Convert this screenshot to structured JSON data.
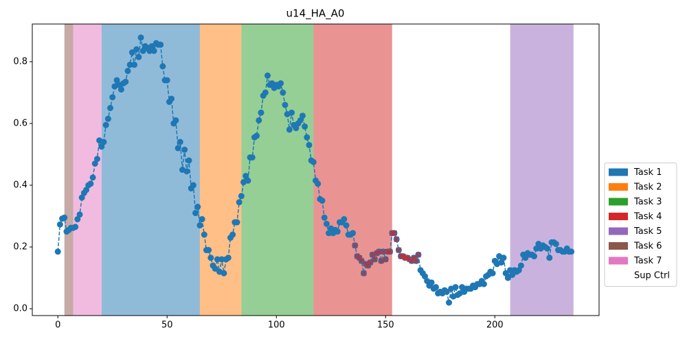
{
  "chart_data": {
    "type": "line",
    "title": "u14_HA_A0",
    "x": [
      0,
      1,
      2,
      3,
      4,
      5,
      6,
      7,
      8,
      9,
      10,
      11,
      12,
      13,
      14,
      15,
      16,
      17,
      18,
      19,
      20,
      21,
      22,
      23,
      24,
      25,
      26,
      27,
      28,
      29,
      30,
      31,
      32,
      33,
      34,
      35,
      36,
      37,
      38,
      39,
      40,
      41,
      42,
      43,
      44,
      45,
      46,
      47,
      48,
      49,
      50,
      51,
      52,
      53,
      54,
      55,
      56,
      57,
      58,
      59,
      60,
      61,
      62,
      63,
      64,
      65,
      66,
      67,
      68,
      69,
      70,
      71,
      72,
      73,
      74,
      75,
      76,
      77,
      78,
      79,
      80,
      81,
      82,
      83,
      84,
      85,
      86,
      87,
      88,
      89,
      90,
      91,
      92,
      93,
      94,
      95,
      96,
      97,
      98,
      99,
      100,
      101,
      102,
      103,
      104,
      105,
      106,
      107,
      108,
      109,
      110,
      111,
      112,
      113,
      114,
      115,
      116,
      117,
      118,
      119,
      120,
      121,
      122,
      123,
      124,
      125,
      126,
      127,
      128,
      129,
      130,
      131,
      132,
      133,
      134,
      135,
      136,
      137,
      138,
      139,
      140,
      141,
      142,
      143,
      144,
      145,
      146,
      147,
      148,
      149,
      150,
      151,
      152,
      153,
      154,
      155,
      156,
      157,
      158,
      159,
      160,
      161,
      162,
      163,
      164,
      165,
      166,
      167,
      168,
      169,
      170,
      171,
      172,
      173,
      174,
      175,
      176,
      177,
      178,
      179,
      180,
      181,
      182,
      183,
      184,
      185,
      186,
      187,
      188,
      189,
      190,
      191,
      192,
      193,
      194,
      195,
      196,
      197,
      198,
      199,
      200,
      201,
      202,
      203,
      204,
      205,
      206,
      207,
      208,
      209,
      210,
      211,
      212,
      213,
      214,
      215,
      216,
      217,
      218,
      219,
      220,
      221,
      222,
      223,
      224,
      225,
      226,
      227,
      228,
      229,
      230,
      231,
      232,
      233,
      234,
      235
    ],
    "values": [
      0.185,
      0.273,
      0.292,
      0.295,
      0.25,
      0.255,
      0.262,
      0.262,
      0.265,
      0.29,
      0.305,
      0.36,
      0.375,
      0.385,
      0.4,
      0.405,
      0.425,
      0.47,
      0.485,
      0.545,
      0.525,
      0.54,
      0.595,
      0.615,
      0.65,
      0.685,
      0.72,
      0.74,
      0.725,
      0.71,
      0.73,
      0.735,
      0.77,
      0.79,
      0.83,
      0.79,
      0.84,
      0.815,
      0.878,
      0.835,
      0.85,
      0.845,
      0.835,
      0.85,
      0.835,
      0.86,
      0.855,
      0.855,
      0.785,
      0.74,
      0.74,
      0.67,
      0.68,
      0.6,
      0.61,
      0.52,
      0.54,
      0.45,
      0.515,
      0.445,
      0.48,
      0.39,
      0.4,
      0.31,
      0.33,
      0.27,
      0.29,
      0.24,
      0.19,
      0.19,
      0.165,
      0.14,
      0.13,
      0.16,
      0.12,
      0.16,
      0.115,
      0.16,
      0.165,
      0.23,
      0.24,
      0.28,
      0.28,
      0.345,
      0.365,
      0.41,
      0.43,
      0.415,
      0.49,
      0.49,
      0.555,
      0.56,
      0.61,
      0.635,
      0.69,
      0.7,
      0.755,
      0.725,
      0.73,
      0.715,
      0.725,
      0.72,
      0.73,
      0.7,
      0.66,
      0.63,
      0.58,
      0.635,
      0.595,
      0.585,
      0.6,
      0.61,
      0.625,
      0.59,
      0.555,
      0.53,
      0.48,
      0.475,
      0.415,
      0.405,
      0.355,
      0.35,
      0.295,
      0.275,
      0.245,
      0.26,
      0.245,
      0.255,
      0.25,
      0.28,
      0.28,
      0.29,
      0.27,
      0.24,
      0.24,
      0.245,
      0.205,
      0.17,
      0.165,
      0.155,
      0.115,
      0.145,
      0.14,
      0.15,
      0.175,
      0.16,
      0.18,
      0.185,
      0.155,
      0.185,
      0.16,
      0.185,
      0.185,
      0.245,
      0.245,
      0.225,
      0.19,
      0.17,
      0.17,
      0.165,
      0.165,
      0.16,
      0.155,
      0.165,
      0.155,
      0.175,
      0.125,
      0.115,
      0.105,
      0.09,
      0.075,
      0.085,
      0.065,
      0.07,
      0.05,
      0.055,
      0.05,
      0.06,
      0.055,
      0.02,
      0.065,
      0.04,
      0.07,
      0.045,
      0.05,
      0.07,
      0.055,
      0.065,
      0.065,
      0.065,
      0.075,
      0.07,
      0.08,
      0.08,
      0.09,
      0.08,
      0.105,
      0.11,
      0.12,
      0.115,
      0.155,
      0.145,
      0.17,
      0.15,
      0.165,
      0.115,
      0.1,
      0.125,
      0.11,
      0.125,
      0.12,
      0.125,
      0.14,
      0.175,
      0.165,
      0.18,
      0.175,
      0.175,
      0.17,
      0.195,
      0.21,
      0.195,
      0.205,
      0.2,
      0.195,
      0.165,
      0.215,
      0.215,
      0.21,
      0.19,
      0.19,
      0.185,
      0.185,
      0.195,
      0.185,
      0.185
    ],
    "color": "#1f77b4",
    "line_style": "dashed",
    "cross_color": "#d62728",
    "cross_range": [
      136,
      165
    ],
    "regions": [
      {
        "name": "Task 1",
        "color": "#1f77b4",
        "start": 20,
        "end": 65
      },
      {
        "name": "Task 2",
        "color": "#ff7f0e",
        "start": 65,
        "end": 84
      },
      {
        "name": "Task 3",
        "color": "#2ca02c",
        "start": 84,
        "end": 117
      },
      {
        "name": "Task 4",
        "color": "#d62728",
        "start": 117,
        "end": 153
      },
      {
        "name": "Task 5",
        "color": "#9467bd",
        "start": 207,
        "end": 236
      },
      {
        "name": "Task 6",
        "color": "#8c564b",
        "start": 3,
        "end": 7
      },
      {
        "name": "Task 7",
        "color": "#e377c2",
        "start": 7,
        "end": 20
      },
      {
        "name": "Sup Ctrl",
        "color": "#ffffff",
        "start": 153,
        "end": 207
      }
    ],
    "xlim": [
      -11.7,
      247.7
    ],
    "ylim": [
      -0.022,
      0.922
    ],
    "xticks": [
      0,
      50,
      100,
      150,
      200
    ],
    "yticks": [
      {
        "value": 0,
        "label": "0.0"
      },
      0.2,
      0.4,
      0.6,
      0.8
    ],
    "grid": false,
    "legend_position": "right"
  }
}
